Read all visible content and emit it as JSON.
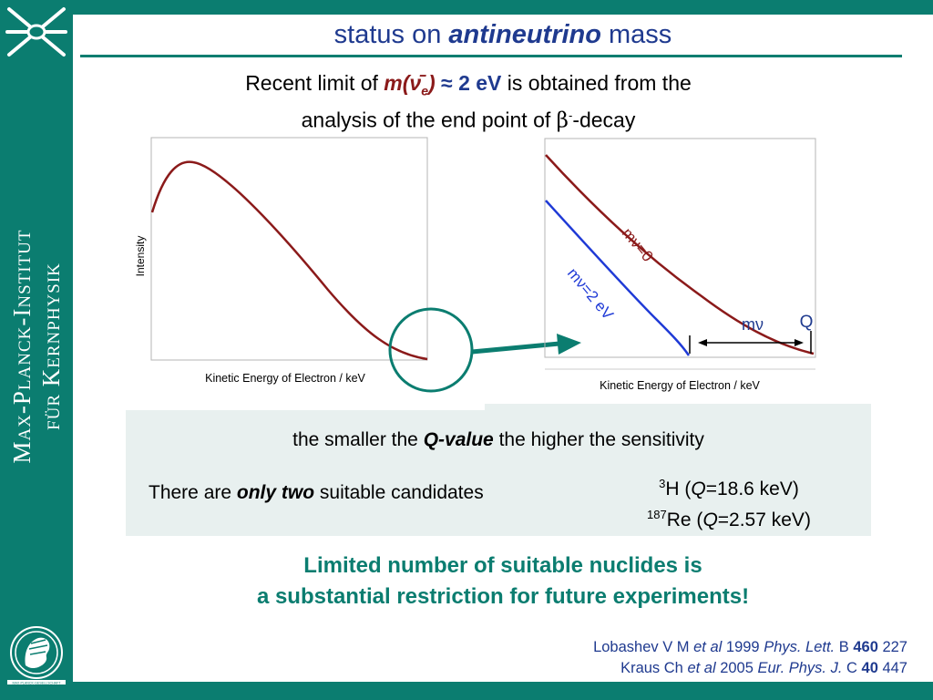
{
  "sidebar": {
    "institute_line1": "Max-Planck-Institut",
    "institute_line2": "für Kernphysik",
    "seal_text": "MAX-PLANCK-GESELLSCHAFT"
  },
  "title": {
    "pre": "status on ",
    "emph": "antineutrino",
    "post": " mass"
  },
  "intro": {
    "line1_pre": "Recent limit of ",
    "line1_formula": "m(ν̄",
    "line1_sub": "e",
    "line1_formula_close": ")",
    "line1_value": " ≈ 2 eV",
    "line1_post": " is obtained from the",
    "line2_pre": "analysis of the end point of ",
    "line2_beta": "β",
    "line2_sup": "-",
    "line2_post": "-decay"
  },
  "plot_left": {
    "ylabel": "Intensity",
    "xlabel": "Kinetic Energy of Electron / keV"
  },
  "plot_right": {
    "xlabel": "Kinetic Energy of Electron / keV",
    "curve_mass0": "mν=0",
    "curve_mass2": "mν=2 eV",
    "gap_label": "mν",
    "endpoint_label": "Q"
  },
  "panel": {
    "sensitivity_pre": "the smaller the ",
    "sensitivity_emph": "Q-value",
    "sensitivity_post": " the higher the sensitivity",
    "candidates_pre": "There are ",
    "candidates_emph": "only two",
    "candidates_post": " suitable candidates",
    "nuclide1_mass": "3",
    "nuclide1_symbol": "H (",
    "nuclide1_q": "Q",
    "nuclide1_value": "=18.6 keV)",
    "nuclide2_mass": "187",
    "nuclide2_symbol": "Re (",
    "nuclide2_q": "Q",
    "nuclide2_value": "=2.57 keV)"
  },
  "conclusion": {
    "line1": "Limited number of suitable nuclides is",
    "line2": "a substantial restriction for future experiments!"
  },
  "references": [
    {
      "authors": "Lobashev V M ",
      "etal": "et al",
      "year": " 1999 ",
      "journal": "Phys. Lett.",
      "series": " B ",
      "volume": "460",
      "page": " 227"
    },
    {
      "authors": "Kraus Ch ",
      "etal": "et al",
      "year": " 2005 ",
      "journal": "Eur. Phys. J.",
      "series": " C ",
      "volume": "40",
      "page": " 447"
    }
  ],
  "colors": {
    "green": "#0b7d70",
    "blue_text": "#1f3a8f",
    "curve_red": "#8b1a1a",
    "curve_blue": "#1f3ad6",
    "panel_bg": "#e8f0ef"
  }
}
